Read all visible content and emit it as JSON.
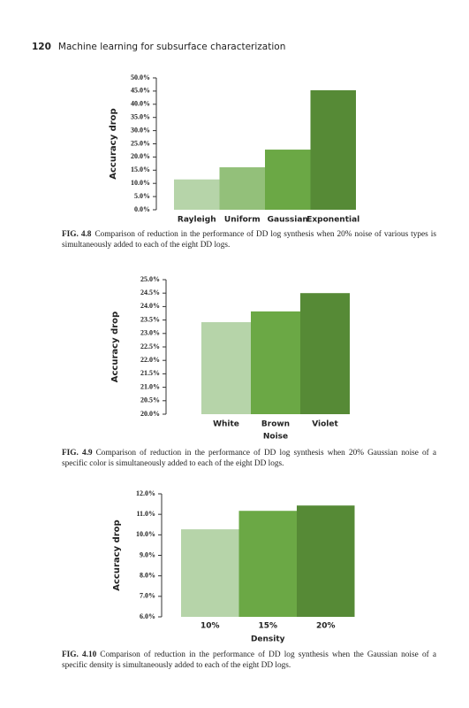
{
  "header": {
    "page_number": "120",
    "title": "Machine learning for subsurface characterization"
  },
  "chart_data": [
    {
      "type": "bar",
      "y_label": "Accuracy drop",
      "categories": [
        "Rayleigh",
        "Uniform",
        "Gaussian",
        "Exponential"
      ],
      "values": [
        11.5,
        16.1,
        22.8,
        45.3
      ],
      "colors": [
        "#b6d4a9",
        "#93c07a",
        "#6ba845",
        "#568a36"
      ],
      "ylim": [
        0,
        50
      ],
      "yticks": [
        {
          "value": 0,
          "label": "0.0%"
        },
        {
          "value": 5,
          "label": "5.0%"
        },
        {
          "value": 10,
          "label": "10.0%"
        },
        {
          "value": 15,
          "label": "15.0%"
        },
        {
          "value": 20,
          "label": "20.0%"
        },
        {
          "value": 25,
          "label": "25.0%"
        },
        {
          "value": 30,
          "label": "30.0%"
        },
        {
          "value": 35,
          "label": "35.0%"
        },
        {
          "value": 40,
          "label": "40.0%"
        },
        {
          "value": 45,
          "label": "45.0%"
        },
        {
          "value": 50,
          "label": "50.0%"
        }
      ],
      "caption": {
        "label": "FIG. 4.8",
        "text": "Comparison of reduction in the performance of DD log synthesis when 20% noise of various types is simultaneously added to each of the eight DD logs."
      }
    },
    {
      "type": "bar",
      "y_label": "Accuracy drop",
      "x_label": "Noise",
      "categories": [
        "White",
        "Brown",
        "Violet"
      ],
      "values": [
        23.42,
        23.82,
        24.5
      ],
      "colors": [
        "#b6d4a9",
        "#6ba845",
        "#568a36"
      ],
      "ylim": [
        20,
        25
      ],
      "yticks": [
        {
          "value": 20,
          "label": "20.0%"
        },
        {
          "value": 20.5,
          "label": "20.5%"
        },
        {
          "value": 21,
          "label": "21.0%"
        },
        {
          "value": 21.5,
          "label": "21.5%"
        },
        {
          "value": 22,
          "label": "22.0%"
        },
        {
          "value": 22.5,
          "label": "22.5%"
        },
        {
          "value": 23,
          "label": "23.0%"
        },
        {
          "value": 23.5,
          "label": "23.5%"
        },
        {
          "value": 24,
          "label": "24.0%"
        },
        {
          "value": 24.5,
          "label": "24.5%"
        },
        {
          "value": 25,
          "label": "25.0%"
        }
      ],
      "caption": {
        "label": "FIG. 4.9",
        "text": "Comparison of reduction in the performance of DD log synthesis when 20% Gaussian noise of a specific color is simultaneously added to each of the eight DD logs."
      }
    },
    {
      "type": "bar",
      "y_label": "Accuracy drop",
      "x_label": "Density",
      "categories": [
        "10%",
        "15%",
        "20%"
      ],
      "values": [
        10.27,
        11.17,
        11.43
      ],
      "colors": [
        "#b6d4a9",
        "#6ba845",
        "#568a36"
      ],
      "ylim": [
        6,
        12
      ],
      "yticks": [
        {
          "value": 6,
          "label": "6.0%"
        },
        {
          "value": 7,
          "label": "7.0%"
        },
        {
          "value": 8,
          "label": "8.0%"
        },
        {
          "value": 9,
          "label": "9.0%"
        },
        {
          "value": 10,
          "label": "10.0%"
        },
        {
          "value": 11,
          "label": "11.0%"
        },
        {
          "value": 12,
          "label": "12.0%"
        }
      ],
      "caption": {
        "label": "FIG. 4.10",
        "text": "Comparison of reduction in the performance of DD log synthesis when the Gaussian noise of a specific density is simultaneously added to each of the eight DD logs."
      }
    }
  ]
}
